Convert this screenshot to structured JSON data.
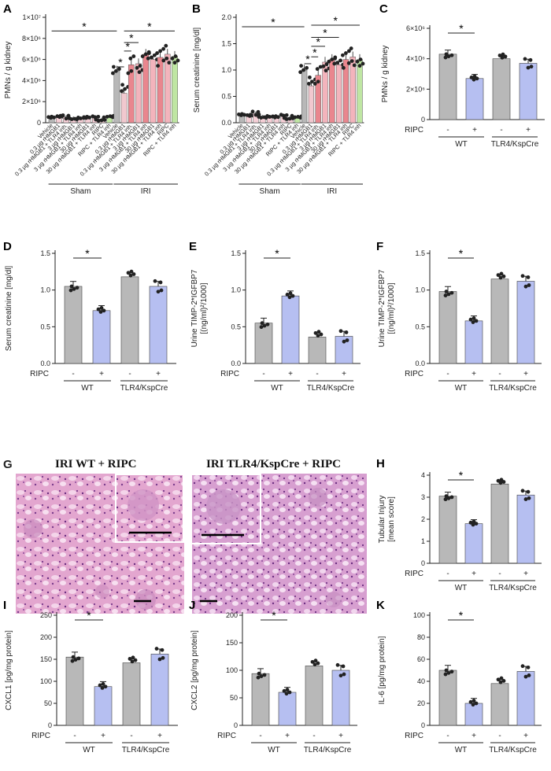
{
  "chart_data": [
    {
      "id": "A",
      "type": "bar",
      "ylabel": "PMNs / g kidney",
      "ylim": [
        0,
        10000000
      ],
      "yticks": [
        "0",
        "2×10⁶",
        "4×10⁶",
        "6×10⁶",
        "8×10⁶",
        "1×10⁷"
      ],
      "categories": [
        "Vehicle",
        "0.3 µg rHMGB1",
        "0.3 µg rHMGB1 + TLR4 inh.",
        "3 µg rHMGB1",
        "3 µg rHMGB1 + TLR4 inh",
        "30 µg rHMGB1",
        "30 µg rHMGB1 + TLR4 inh",
        "RIPC",
        "RIPC + TLR4 inh",
        "Vehicle",
        "0.3 µg rHMGB1",
        "0.3 µg rHMGB1 + TLR4 inh.",
        "3 µg rHMGB1",
        "3 µg rHMGB1 + TLR4 inh",
        "30 µg rHMGB1",
        "30 µg rHMGB1 + TLR4 inh",
        "RIPC",
        "RIPC + TLR4 inh"
      ],
      "values": [
        500000,
        500000,
        550000,
        450000,
        450000,
        450000,
        450000,
        350000,
        650000,
        4900000,
        2800000,
        5500000,
        5600000,
        6500000,
        6000000,
        6200000,
        6500000,
        6300000
      ],
      "groups": [
        "Sham",
        "IRI"
      ],
      "significance": [
        "*",
        "*",
        "*",
        "*",
        "*"
      ]
    },
    {
      "id": "B",
      "type": "bar",
      "ylabel": "Serum creatinine [mg/dl]",
      "ylim": [
        0,
        2.0
      ],
      "yticks": [
        "0.0",
        "0.5",
        "1.0",
        "1.5",
        "2.0"
      ],
      "categories": [
        "Vehicle",
        "0.3 µg rHMGB1",
        "0.3 µg rHMGB1 + TLR4 inh.",
        "3 µg rHMGB1",
        "3 µg rHMGB1 + TLR4 inh",
        "30 µg rHMGB1",
        "30 µg rHMGB1 + TLR4 inh",
        "RIPC",
        "RIPC + TLR4 inh",
        "Vehicle",
        "0.3 µg rHMGB1",
        "0.3 µg rHMGB1 + TLR4 inh.",
        "3 µg rHMGB1",
        "3 µg rHMGB1 + TLR4 inh",
        "30 µg rHMGB1",
        "30 µg rHMGB1 + TLR4 inh",
        "RIPC",
        "RIPC + TLR4 inh"
      ],
      "values": [
        0.15,
        0.12,
        0.18,
        0.12,
        0.12,
        0.1,
        0.12,
        0.1,
        0.12,
        1.0,
        0.7,
        0.9,
        1.15,
        1.2,
        1.1,
        1.2,
        1.25,
        1.2
      ],
      "groups": [
        "Sham",
        "IRI"
      ],
      "significance": [
        "*",
        "*",
        "*",
        "*",
        "*",
        "*"
      ]
    },
    {
      "id": "C",
      "type": "bar",
      "ylabel": "PMNs / g kidney",
      "ylim": [
        0,
        6000000
      ],
      "yticks": [
        "0",
        "2×10⁶",
        "4×10⁶",
        "6×10⁶"
      ],
      "ripc": [
        "-",
        "+",
        "-",
        "+"
      ],
      "groups": [
        "WT",
        "TLR4/KspCre"
      ],
      "values": [
        4300000,
        2700000,
        4000000,
        3700000
      ],
      "significance": [
        "*"
      ]
    },
    {
      "id": "D",
      "type": "bar",
      "ylabel": "Serum creatinine [mg/dl]",
      "ylim": [
        0,
        1.5
      ],
      "yticks": [
        "0.0",
        "0.5",
        "1.0",
        "1.5"
      ],
      "ripc": [
        "-",
        "+",
        "-",
        "+"
      ],
      "groups": [
        "WT",
        "TLR4/KspCre"
      ],
      "values": [
        1.05,
        0.72,
        1.18,
        1.05
      ],
      "significance": [
        "*"
      ]
    },
    {
      "id": "E",
      "type": "bar",
      "ylabel": "Urine TIMP-2*IGFBP7 [(ng/ml)²/1000]",
      "ylim": [
        0,
        1.5
      ],
      "yticks": [
        "0.0",
        "0.5",
        "1.0",
        "1.5"
      ],
      "ripc": [
        "-",
        "+",
        "-",
        "+"
      ],
      "groups": [
        "WT",
        "TLR4/KspCre"
      ],
      "values": [
        0.55,
        0.92,
        0.36,
        0.37
      ],
      "significance": [
        "*"
      ]
    },
    {
      "id": "F",
      "type": "bar",
      "ylabel": "Urine TIMP-2*IGFBP7 [(ng/ml)²/1000]",
      "ylim": [
        0,
        1.5
      ],
      "yticks": [
        "0.0",
        "0.5",
        "1.0",
        "1.5"
      ],
      "ripc": [
        "-",
        "+",
        "-",
        "+"
      ],
      "groups": [
        "WT",
        "TLR4/KspCre"
      ],
      "values": [
        0.98,
        0.58,
        1.15,
        1.12
      ],
      "significance": [
        "*"
      ]
    },
    {
      "id": "H",
      "type": "bar",
      "ylabel": "Tubular Injury [mean score]",
      "ylim": [
        0,
        4
      ],
      "yticks": [
        "0",
        "1",
        "2",
        "3",
        "4"
      ],
      "ripc": [
        "-",
        "+",
        "-",
        "+"
      ],
      "groups": [
        "WT",
        "TLR4/KspCre"
      ],
      "values": [
        3.05,
        1.8,
        3.6,
        3.1
      ],
      "significance": [
        "*"
      ]
    },
    {
      "id": "I",
      "type": "bar",
      "ylabel": "CXCL1 [pg/mg protein]",
      "ylim": [
        0,
        250
      ],
      "yticks": [
        "0",
        "50",
        "100",
        "150",
        "200",
        "250"
      ],
      "ripc": [
        "-",
        "+",
        "-",
        "+"
      ],
      "groups": [
        "WT",
        "TLR4/KspCre"
      ],
      "values": [
        155,
        88,
        142,
        162
      ],
      "significance": [
        "*"
      ]
    },
    {
      "id": "J",
      "type": "bar",
      "ylabel": "CXCL2 [pg/mg protein]",
      "ylim": [
        0,
        200
      ],
      "yticks": [
        "0",
        "50",
        "100",
        "150",
        "200"
      ],
      "ripc": [
        "-",
        "+",
        "-",
        "+"
      ],
      "groups": [
        "WT",
        "TLR4/KspCre"
      ],
      "values": [
        94,
        60,
        108,
        100
      ],
      "significance": [
        "*"
      ]
    },
    {
      "id": "K",
      "type": "bar",
      "ylabel": "IL-6 [pg/mg protein]",
      "ylim": [
        0,
        100
      ],
      "yticks": [
        "0",
        "20",
        "40",
        "60",
        "80",
        "100"
      ],
      "ripc": [
        "-",
        "+",
        "-",
        "+"
      ],
      "groups": [
        "WT",
        "TLR4/KspCre"
      ],
      "values": [
        50,
        20,
        38,
        49
      ],
      "significance": [
        "*"
      ]
    }
  ],
  "ripc_label": "RIPC",
  "colors": {
    "grey": "#b8b8b8",
    "lavender": "#b6bff1",
    "sham": "#f5cfd6",
    "iri_ripc": "#f1c8cf",
    "iri_hmgb1": "#e9868e",
    "iri_inh": "#f3b4bc",
    "iri_ripc_inh": "#bfe6a3"
  },
  "histology": {
    "letter": "G",
    "left_title": "IRI WT + RIPC",
    "right_title": "IRI TLR4/KspCre + RIPC"
  }
}
